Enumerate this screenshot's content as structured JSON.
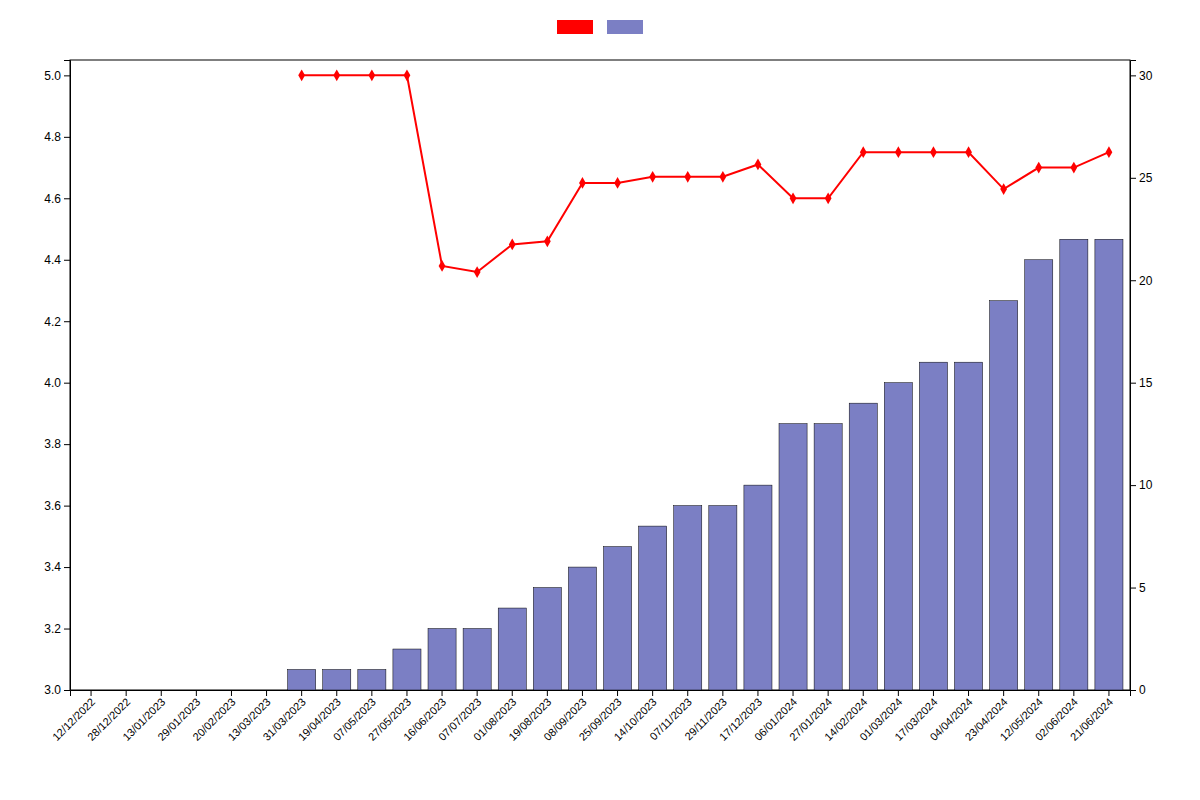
{
  "chart_data": {
    "type": "bar",
    "categories": [
      "12/12/2022",
      "28/12/2022",
      "13/01/2023",
      "29/01/2023",
      "20/02/2023",
      "13/03/2023",
      "31/03/2023",
      "19/04/2023",
      "07/05/2023",
      "27/05/2023",
      "16/06/2023",
      "07/07/2023",
      "01/08/2023",
      "19/08/2023",
      "08/09/2023",
      "25/09/2023",
      "14/10/2023",
      "07/11/2023",
      "29/11/2023",
      "17/12/2023",
      "06/01/2024",
      "27/01/2024",
      "14/02/2024",
      "01/03/2024",
      "17/03/2024",
      "04/04/2024",
      "23/04/2024",
      "12/05/2024",
      "02/06/2024",
      "21/06/2024"
    ],
    "series": [
      {
        "type": "line",
        "color": "#ff0000",
        "marker": "diamond",
        "values": [
          null,
          null,
          null,
          null,
          null,
          null,
          5.0,
          5.0,
          5.0,
          5.0,
          4.38,
          4.36,
          4.45,
          4.46,
          4.65,
          4.65,
          4.67,
          4.67,
          4.67,
          4.71,
          4.6,
          4.6,
          4.75,
          4.75,
          4.75,
          4.75,
          4.63,
          4.7,
          4.7,
          4.75
        ]
      },
      {
        "type": "bar",
        "color": "#7b7fc4",
        "axis": "y2",
        "values": [
          0,
          0,
          0,
          0,
          0,
          0,
          1,
          1,
          1,
          2,
          3,
          3,
          4,
          5,
          6,
          7,
          8,
          9,
          9,
          10,
          13,
          13,
          14,
          15,
          16,
          16,
          19,
          21,
          22,
          22
        ]
      }
    ],
    "ylim": [
      3.0,
      5.05
    ],
    "yticks": [
      {
        "value": 3.0,
        "label": "3.0"
      },
      3.2,
      3.4,
      3.6,
      3.8,
      {
        "value": 4.0,
        "label": "4.0"
      },
      4.2,
      4.4,
      4.6,
      4.8,
      {
        "value": 5.0,
        "label": "5.0"
      }
    ],
    "y2lim": [
      0,
      30.75
    ],
    "y2ticks": [
      0,
      5,
      10,
      15,
      20,
      25,
      30
    ],
    "legend": "top",
    "grid": false
  }
}
